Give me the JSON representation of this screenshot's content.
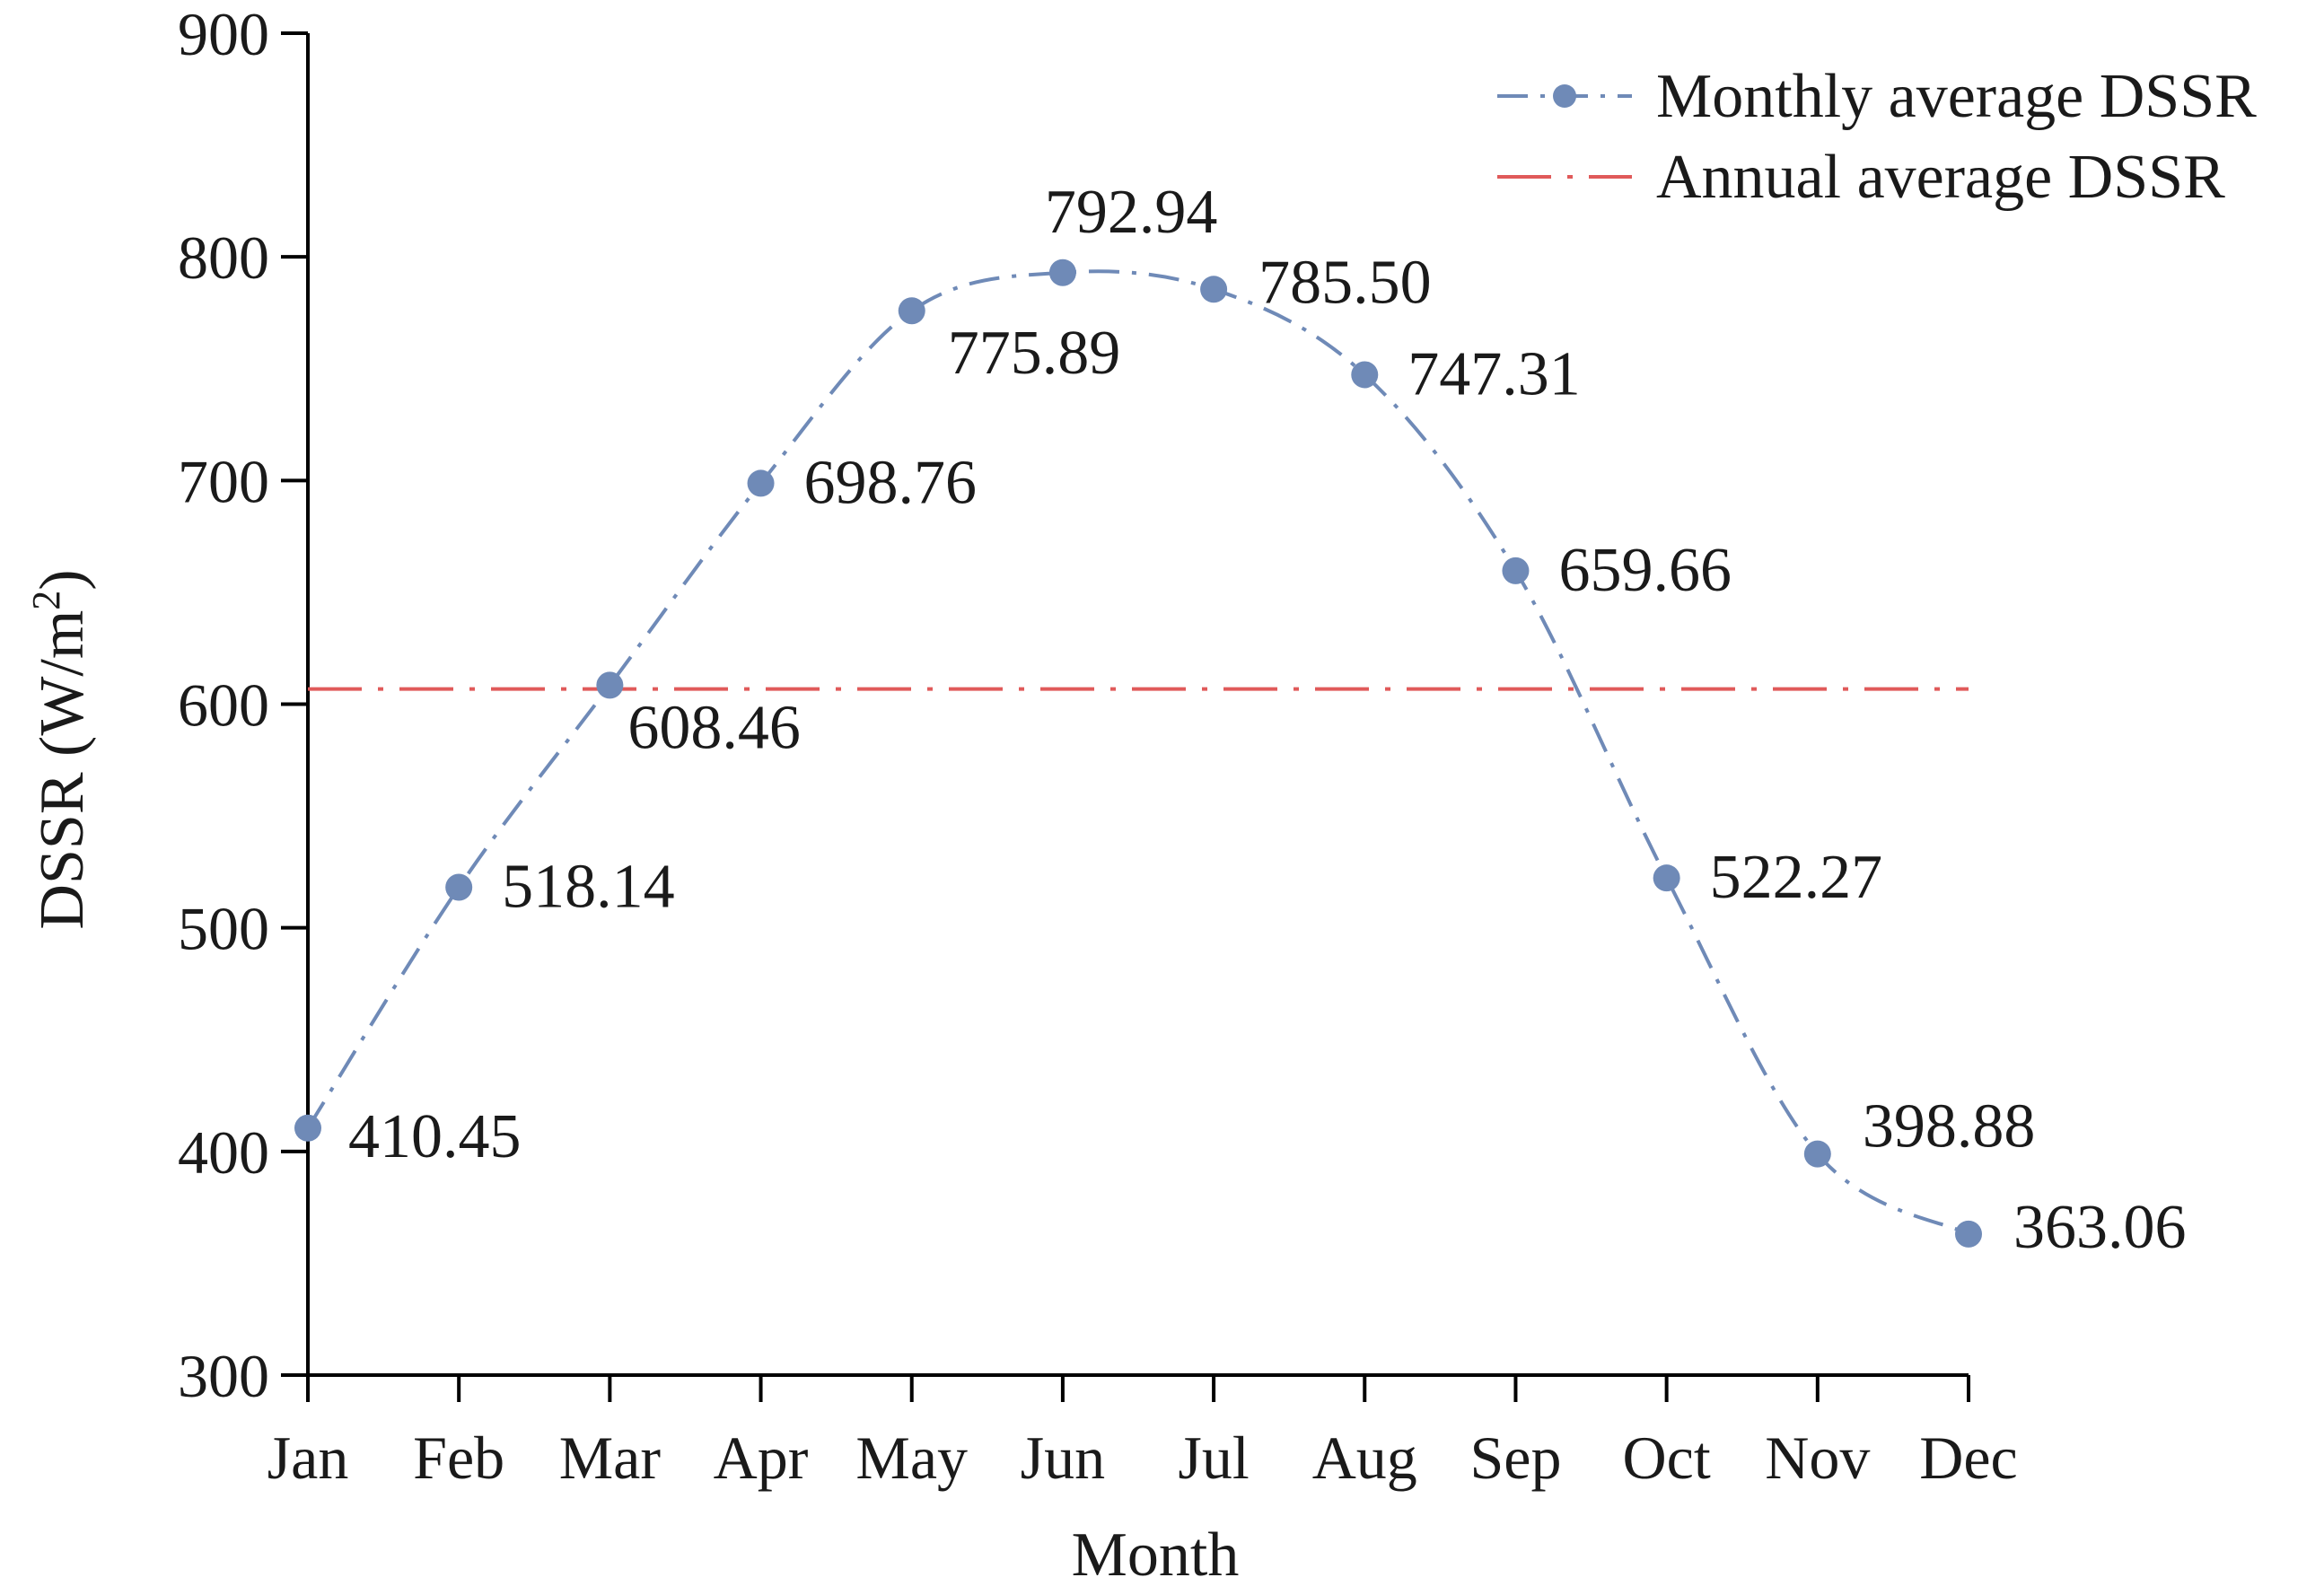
{
  "chart_data": {
    "type": "line",
    "title": "",
    "xlabel": "Month",
    "ylabel": "DSSR (W/m²)",
    "ylabel_parts": {
      "main": "DSSR (W/m",
      "sup": "2",
      "tail": ")"
    },
    "categories": [
      "Jan",
      "Feb",
      "Mar",
      "Apr",
      "May",
      "Jun",
      "Jul",
      "Aug",
      "Sep",
      "Oct",
      "Nov",
      "Dec"
    ],
    "ylim": [
      300,
      900
    ],
    "yticks": [
      300,
      400,
      500,
      600,
      700,
      800,
      900
    ],
    "grid": false,
    "legend_position": "top-right",
    "series": [
      {
        "name": "Monthly average DSSR",
        "values": [
          410.45,
          518.14,
          608.46,
          698.76,
          775.89,
          792.94,
          785.5,
          747.31,
          659.66,
          522.27,
          398.88,
          363.06
        ],
        "labels": [
          "410.45",
          "518.14",
          "608.46",
          "698.76",
          "775.89",
          "792.94",
          "785.50",
          "747.31",
          "659.66",
          "522.27",
          "398.88",
          "363.06"
        ],
        "color": "#6f8ab7",
        "line_style": "dash-dot",
        "marker": "circle"
      },
      {
        "name": "Annual average DSSR",
        "value": 606.78,
        "color": "#e05a5a",
        "line_style": "dash-dot",
        "marker": "none"
      }
    ]
  }
}
